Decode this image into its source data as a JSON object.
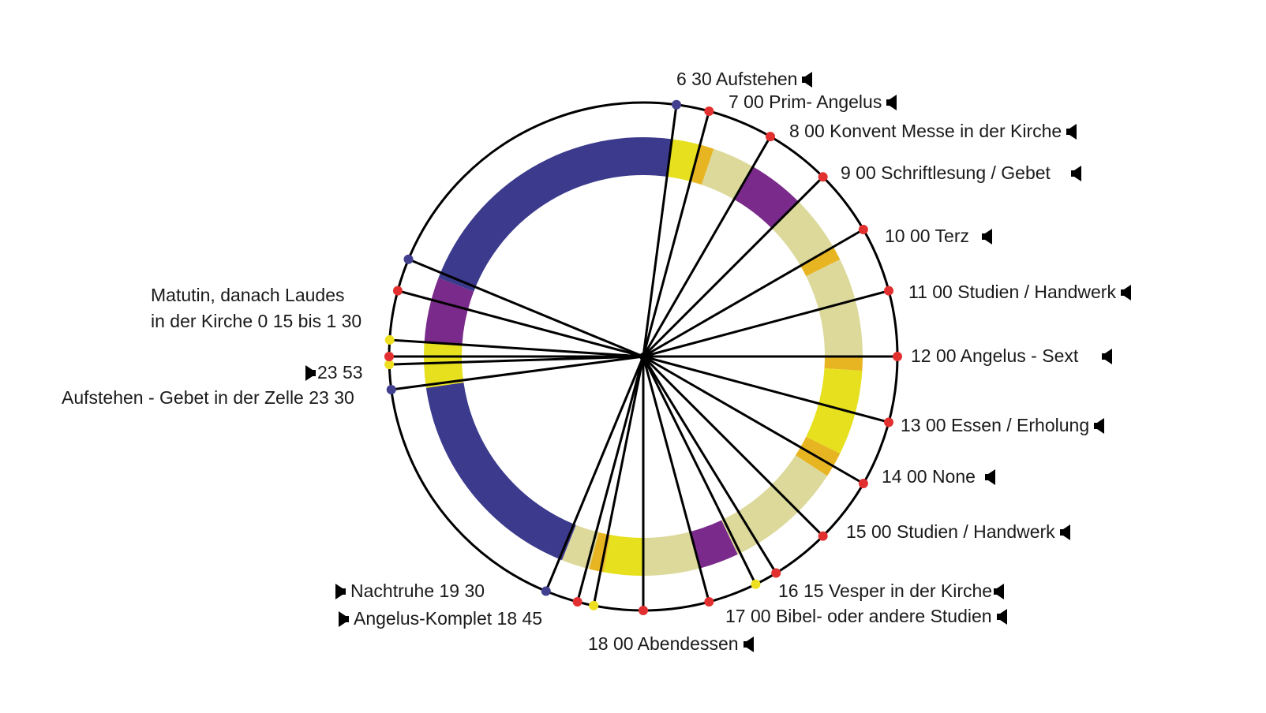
{
  "colors": {
    "blue": "#3b3a8c",
    "purple": "#7a2a8a",
    "yellow": "#e6e01e",
    "orange": "#e8b522",
    "khaki": "#dcd99b",
    "red": "#e23030",
    "dot_yellow": "#eee020",
    "dot_blue": "#41408f"
  },
  "ring_segments": [
    {
      "from": 6.5,
      "to": 7.0,
      "color": "yellow"
    },
    {
      "from": 7.0,
      "to": 7.25,
      "color": "orange"
    },
    {
      "from": 7.25,
      "to": 8.0,
      "color": "khaki"
    },
    {
      "from": 8.0,
      "to": 9.0,
      "color": "purple"
    },
    {
      "from": 9.0,
      "to": 10.0,
      "color": "khaki"
    },
    {
      "from": 10.0,
      "to": 10.25,
      "color": "orange"
    },
    {
      "from": 10.25,
      "to": 12.0,
      "color": "khaki"
    },
    {
      "from": 12.0,
      "to": 12.25,
      "color": "orange"
    },
    {
      "from": 12.25,
      "to": 13.75,
      "color": "yellow"
    },
    {
      "from": 13.75,
      "to": 14.2,
      "color": "orange"
    },
    {
      "from": 14.2,
      "to": 16.3,
      "color": "khaki"
    },
    {
      "from": 16.3,
      "to": 17.0,
      "color": "purple"
    },
    {
      "from": 17.0,
      "to": 18.0,
      "color": "khaki"
    },
    {
      "from": 18.0,
      "to": 18.7,
      "color": "yellow"
    },
    {
      "from": 18.7,
      "to": 18.95,
      "color": "orange"
    },
    {
      "from": 18.95,
      "to": 19.45,
      "color": "khaki"
    },
    {
      "from": 19.45,
      "to": 23.45,
      "color": "blue"
    },
    {
      "from": 23.45,
      "to": 24.25,
      "color": "yellow"
    },
    {
      "from": 24.25,
      "to": 25.4,
      "color": "purple"
    },
    {
      "from": 25.4,
      "to": 30.5,
      "color": "blue"
    }
  ],
  "markers": [
    {
      "hour": 6.5,
      "color": "dot_blue"
    },
    {
      "hour": 7,
      "color": "red"
    },
    {
      "hour": 8,
      "color": "red"
    },
    {
      "hour": 9,
      "color": "red"
    },
    {
      "hour": 10,
      "color": "red"
    },
    {
      "hour": 11,
      "color": "red"
    },
    {
      "hour": 12,
      "color": "red"
    },
    {
      "hour": 13,
      "color": "red"
    },
    {
      "hour": 14,
      "color": "red"
    },
    {
      "hour": 15,
      "color": "red"
    },
    {
      "hour": 15.9,
      "color": "red"
    },
    {
      "hour": 16.25,
      "color": "dot_yellow"
    },
    {
      "hour": 17,
      "color": "red"
    },
    {
      "hour": 18,
      "color": "red"
    },
    {
      "hour": 18.75,
      "color": "dot_yellow"
    },
    {
      "hour": 19,
      "color": "red"
    },
    {
      "hour": 19.5,
      "color": "dot_blue"
    },
    {
      "hour": 23.5,
      "color": "dot_blue"
    },
    {
      "hour": 23.88,
      "color": "dot_yellow"
    },
    {
      "hour": 24,
      "color": "red"
    },
    {
      "hour": 24.25,
      "color": "dot_yellow"
    },
    {
      "hour": 25,
      "color": "red"
    },
    {
      "hour": 25.5,
      "color": "dot_blue"
    }
  ],
  "labels": {
    "l0630": "6 30    Aufstehen",
    "l0700": "7 00    Prim- Angelus",
    "l0800": "8 00   Konvent Messe in der Kirche",
    "l0900": "9 00   Schriftlesung / Gebet",
    "l1000": "10 00  Terz",
    "l1100": "11 00  Studien / Handwerk",
    "l1200": "12 00  Angelus - Sext",
    "l1300": "13 00    Essen / Erholung",
    "l1400": "14 00   None",
    "l1500": "15 00  Studien / Handwerk",
    "l1615": "16 15   Vesper  in der Kirche",
    "l1700": "17 00  Bibel- oder andere  Studien",
    "l1800": "18  00  Abendessen",
    "l1845": "Angelus-Komplet   18 45",
    "l1930": "Nachtruhe  19 30",
    "l2330": "Aufstehen - Gebet in der Zelle 23 30",
    "l2353": "23 53",
    "matutin1": "Matutin, danach Laudes",
    "matutin2": "in der Kirche 0 15 bis 1 30"
  }
}
